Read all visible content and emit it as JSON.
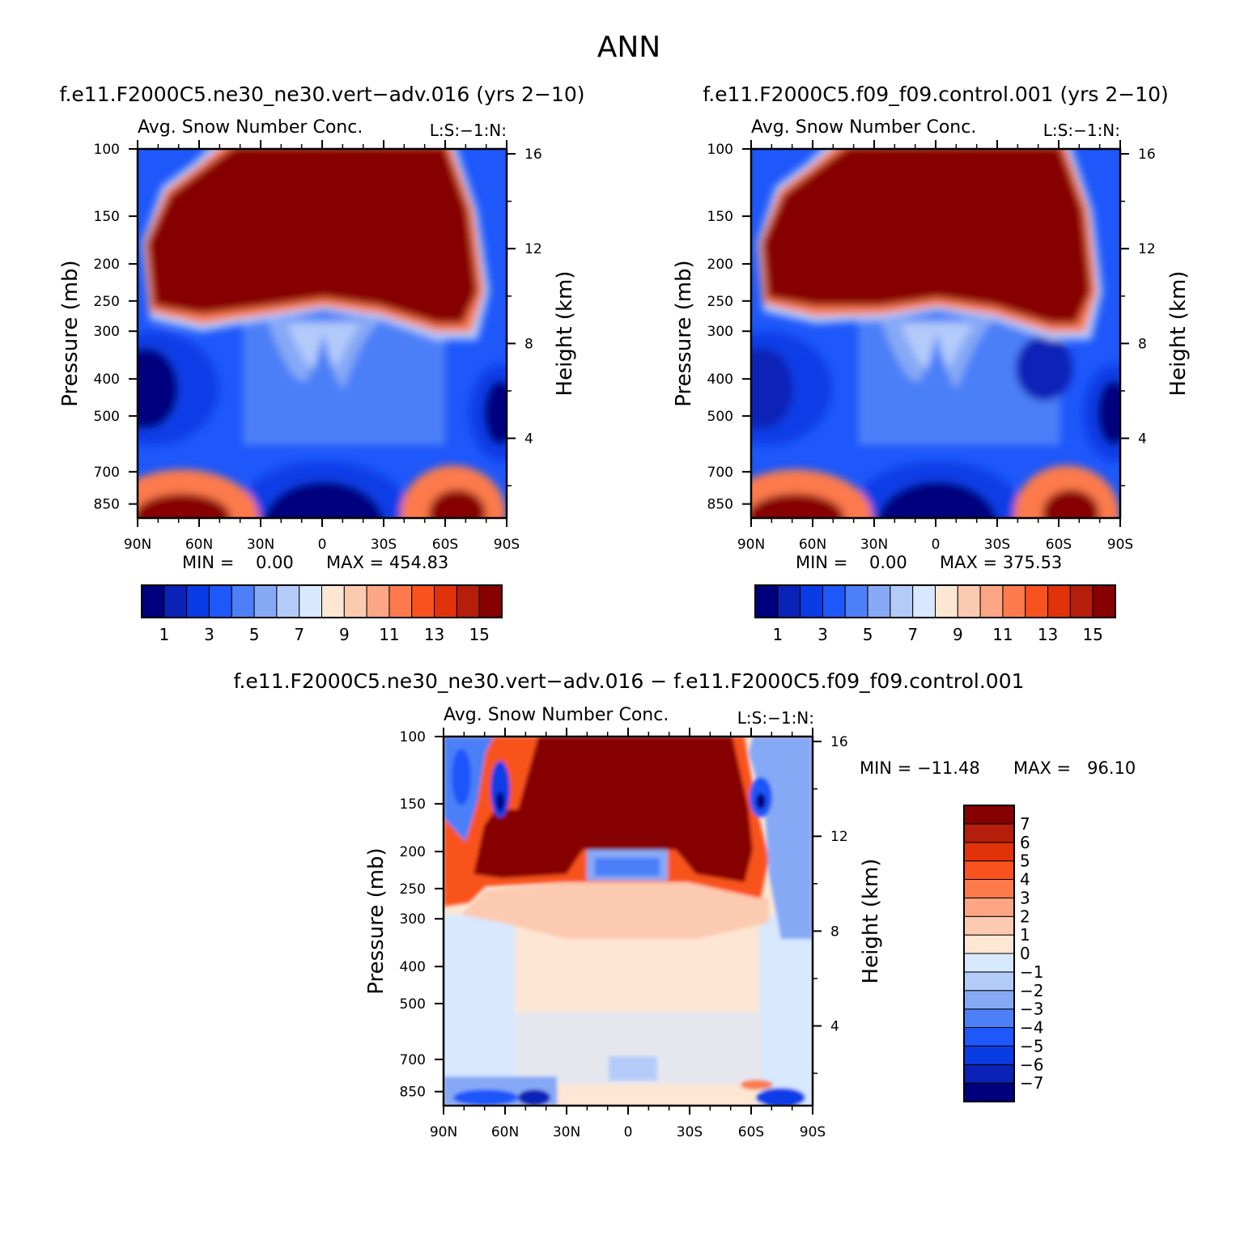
{
  "figure_title": "ANN",
  "colors": {
    "main_scale": [
      "#00007f",
      "#0a23b6",
      "#0a3ce6",
      "#1e57fa",
      "#4c7ff8",
      "#86a9f6",
      "#b4cbfa",
      "#d7e8ff",
      "#fde6d4",
      "#fccab0",
      "#fca685",
      "#fc7a4c",
      "#f9521f",
      "#e2320a",
      "#b41e0a",
      "#870000"
    ],
    "diff_scale": [
      "#00007f",
      "#0a23b6",
      "#0a3ce6",
      "#1e57fa",
      "#4c7ff8",
      "#86a9f6",
      "#b4cbfa",
      "#d7e8ff",
      "#fde6d4",
      "#fccab0",
      "#fca685",
      "#fc7a4c",
      "#f9521f",
      "#e2320a",
      "#b41e0a",
      "#870000"
    ]
  },
  "chart_data": [
    {
      "type": "heatmap",
      "title": "f.e11.F2000C5.ne30_ne30.vert−adv.016 (yrs 2−10)",
      "subtitle": "Avg. Snow Number Conc.",
      "units": "L:S:−1:N:",
      "xlabel": "",
      "ylabel": "Pressure (mb)",
      "ylabel_right": "Height (km)",
      "x_ticks": [
        "90N",
        "60N",
        "30N",
        "0",
        "30S",
        "60S",
        "90S"
      ],
      "y_ticks": [
        "100",
        "150",
        "200",
        "250",
        "300",
        "400",
        "500",
        "700",
        "850"
      ],
      "y_ticks_right": [
        "16",
        "12",
        "8",
        "4"
      ],
      "min_label": "MIN =    0.00",
      "max_label": "MAX = 454.83",
      "min": 0.0,
      "max": 454.83,
      "colorbar_levels": [
        1,
        2,
        3,
        4,
        5,
        6,
        7,
        8,
        9,
        10,
        11,
        12,
        13,
        14,
        15
      ],
      "colorbar_tick_labels": [
        "1",
        "3",
        "5",
        "7",
        "9",
        "11",
        "13",
        "15"
      ],
      "description_regions": [
        {
          "region": "upper troposphere 100-250 mb, 70N-65S",
          "level": 15
        },
        {
          "region": "polar lower troposphere 800-925 mb",
          "level": 15
        },
        {
          "region": "tropics 700-925 mb",
          "level": 0
        },
        {
          "region": "polar 350-600 mb",
          "level": 0
        }
      ]
    },
    {
      "type": "heatmap",
      "title": "f.e11.F2000C5.f09_f09.control.001 (yrs 2−10)",
      "subtitle": "Avg. Snow Number Conc.",
      "units": "L:S:−1:N:",
      "xlabel": "",
      "ylabel": "Pressure (mb)",
      "ylabel_right": "Height (km)",
      "x_ticks": [
        "90N",
        "60N",
        "30N",
        "0",
        "30S",
        "60S",
        "90S"
      ],
      "y_ticks": [
        "100",
        "150",
        "200",
        "250",
        "300",
        "400",
        "500",
        "700",
        "850"
      ],
      "y_ticks_right": [
        "16",
        "12",
        "8",
        "4"
      ],
      "min_label": "MIN =    0.00",
      "max_label": "MAX = 375.53",
      "min": 0.0,
      "max": 375.53,
      "colorbar_levels": [
        1,
        2,
        3,
        4,
        5,
        6,
        7,
        8,
        9,
        10,
        11,
        12,
        13,
        14,
        15
      ],
      "colorbar_tick_labels": [
        "1",
        "3",
        "5",
        "7",
        "9",
        "11",
        "13",
        "15"
      ]
    },
    {
      "type": "heatmap",
      "title": "f.e11.F2000C5.ne30_ne30.vert−adv.016 − f.e11.F2000C5.f09_f09.control.001",
      "subtitle": "Avg. Snow Number Conc.",
      "units": "L:S:−1:N:",
      "xlabel": "",
      "ylabel": "Pressure (mb)",
      "ylabel_right": "Height (km)",
      "x_ticks": [
        "90N",
        "60N",
        "30N",
        "0",
        "30S",
        "60S",
        "90S"
      ],
      "y_ticks": [
        "100",
        "150",
        "200",
        "250",
        "300",
        "400",
        "500",
        "700",
        "850"
      ],
      "y_ticks_right": [
        "16",
        "12",
        "8",
        "4"
      ],
      "min_label": "MIN = −11.48",
      "max_label": "MAX =   96.10",
      "min": -11.48,
      "max": 96.1,
      "colorbar_levels": [
        -7,
        -6,
        -5,
        -4,
        -3,
        -2,
        -1,
        0,
        1,
        2,
        3,
        4,
        5,
        6,
        7
      ],
      "colorbar_tick_labels": [
        "7",
        "6",
        "5",
        "4",
        "3",
        "2",
        "1",
        "0",
        "−1",
        "−2",
        "−3",
        "−4",
        "−5",
        "−6",
        "−7"
      ]
    }
  ]
}
